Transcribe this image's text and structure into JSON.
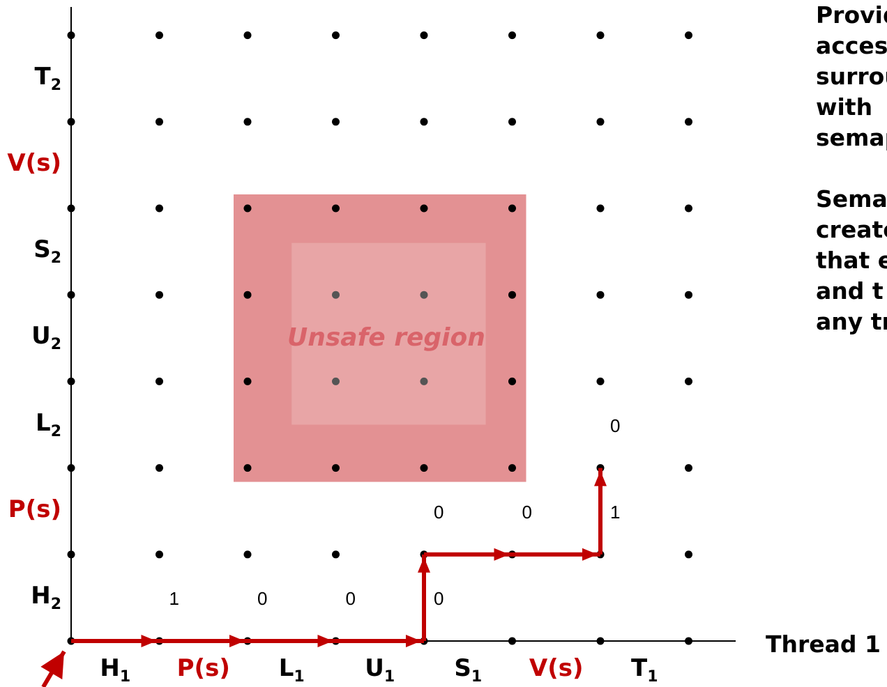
{
  "thread1_axis": {
    "label": "Thread 1",
    "ticks": [
      {
        "base": "H",
        "sub": "1",
        "red": false
      },
      {
        "base": "P(s)",
        "sub": "",
        "red": true
      },
      {
        "base": "L",
        "sub": "1",
        "red": false
      },
      {
        "base": "U",
        "sub": "1",
        "red": false
      },
      {
        "base": "S",
        "sub": "1",
        "red": false
      },
      {
        "base": "V(s)",
        "sub": "",
        "red": true
      },
      {
        "base": "T",
        "sub": "1",
        "red": false
      }
    ]
  },
  "thread2_axis": {
    "ticks": [
      {
        "base": "H",
        "sub": "2",
        "red": false
      },
      {
        "base": "P(s)",
        "sub": "",
        "red": true
      },
      {
        "base": "L",
        "sub": "2",
        "red": false
      },
      {
        "base": "U",
        "sub": "2",
        "red": false
      },
      {
        "base": "S",
        "sub": "2",
        "red": false
      },
      {
        "base": "V(s)",
        "sub": "",
        "red": true
      },
      {
        "base": "T",
        "sub": "2",
        "red": false
      }
    ]
  },
  "unsafe_region": {
    "label": "Unsafe region",
    "t1_range": [
      2,
      5
    ],
    "t2_range": [
      2,
      5
    ],
    "inner_t1_range": [
      2.5,
      4.7
    ],
    "inner_t2_range": [
      2.5,
      4.6
    ]
  },
  "semaphore_values": [
    {
      "i": 1,
      "j": 0,
      "value": "1"
    },
    {
      "i": 2,
      "j": 0,
      "value": "0"
    },
    {
      "i": 3,
      "j": 0,
      "value": "0"
    },
    {
      "i": 4,
      "j": 0,
      "value": "0"
    },
    {
      "i": 4,
      "j": 1,
      "value": "0"
    },
    {
      "i": 5,
      "j": 1,
      "value": "0"
    },
    {
      "i": 6,
      "j": 1,
      "value": "1"
    },
    {
      "i": 6,
      "j": 2,
      "value": "0"
    }
  ],
  "trajectory": [
    [
      0,
      0
    ],
    [
      1,
      0
    ],
    [
      2,
      0
    ],
    [
      3,
      0
    ],
    [
      4,
      0
    ],
    [
      4,
      1
    ],
    [
      5,
      1
    ],
    [
      6,
      1
    ],
    [
      6,
      2
    ]
  ],
  "side_text": {
    "para1": [
      "Provide",
      "access",
      "surrou",
      "with",
      "semap"
    ],
    "para2": [
      "Semap",
      "create",
      "that e",
      "and t",
      "any tr"
    ]
  },
  "colors": {
    "path": "#c00000",
    "region_outer": "#e39193",
    "region_inner": "#e8a5a6",
    "region_text": "#d9646a",
    "red_label": "#c00000"
  }
}
